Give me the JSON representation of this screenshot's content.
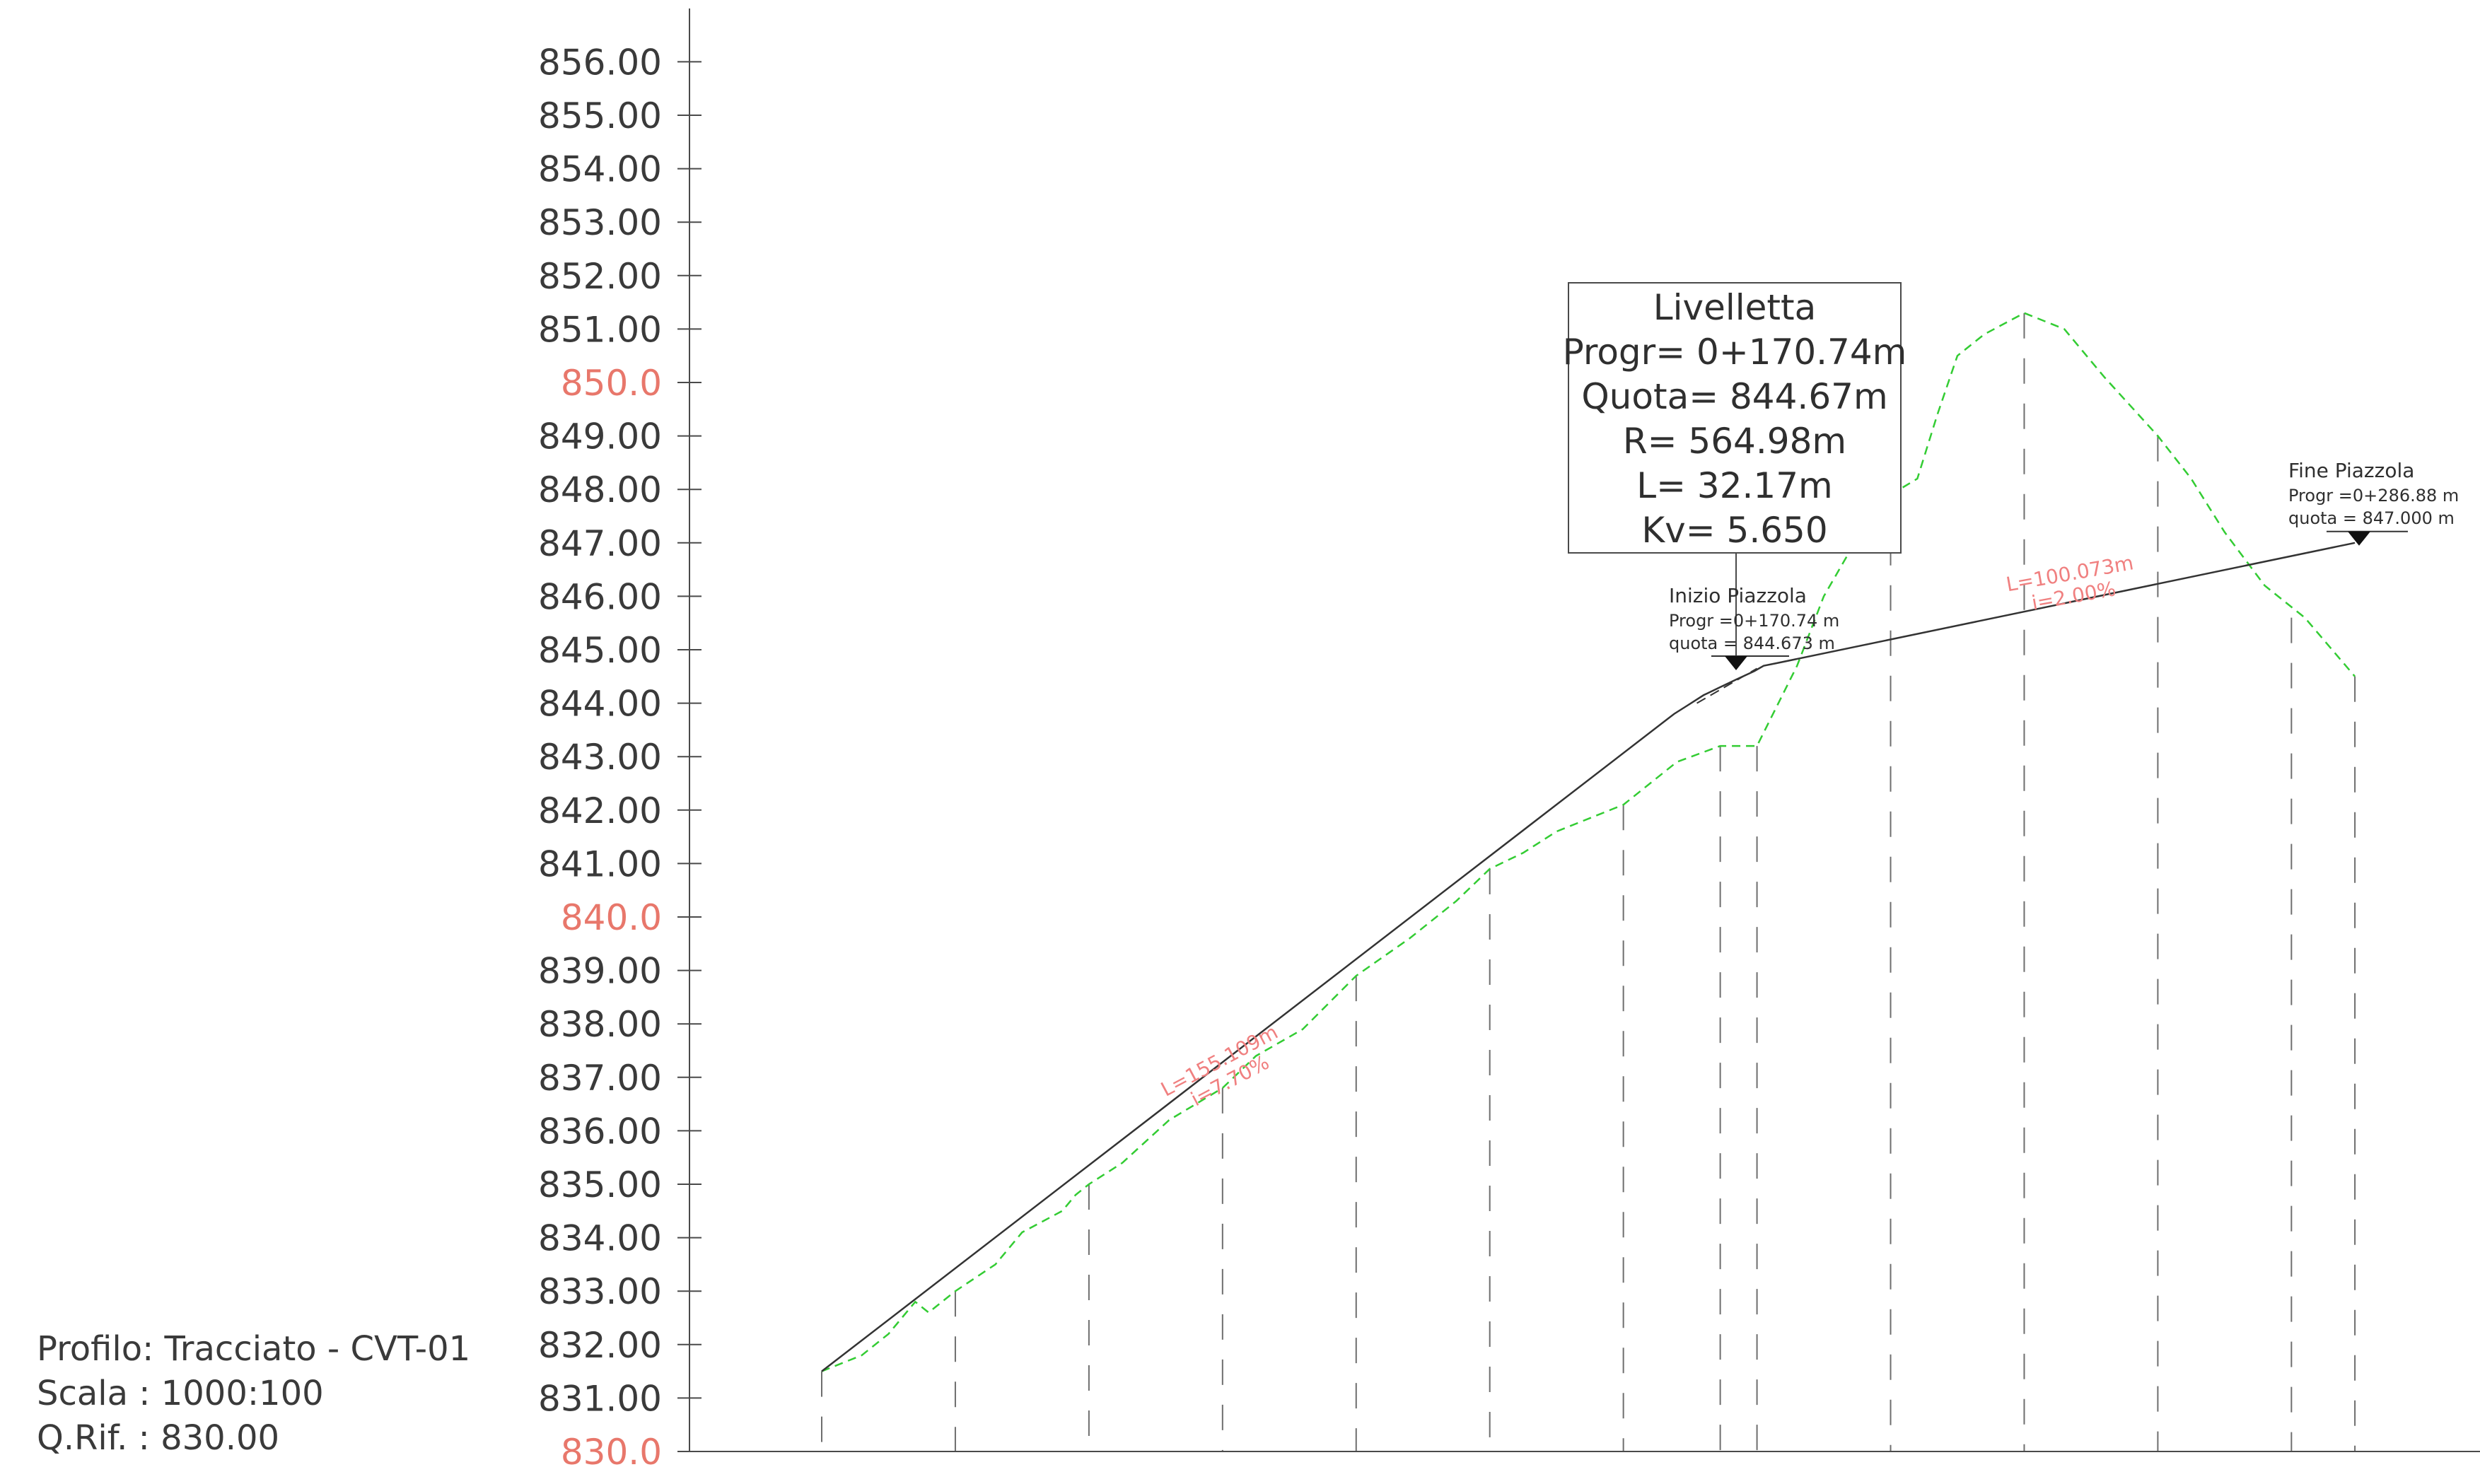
{
  "profile_info": {
    "profilo": "Profilo: Tracciato - CVT-01",
    "scala": "Scala : 1000:100",
    "qrif": "Q.Rif. : 830.00"
  },
  "colors": {
    "axis": "#4a4a4a",
    "ground": "#33cc33",
    "design": "#333333",
    "reference_ticks": "#e8776b",
    "slope_labels": "#f08080",
    "stations": "#6e6e6e"
  },
  "chart_data": {
    "type": "line",
    "ylim": [
      830,
      856.5
    ],
    "grid": false,
    "y_ticks": [
      {
        "value": 856,
        "label": "856.00"
      },
      {
        "value": 855,
        "label": "855.00"
      },
      {
        "value": 854,
        "label": "854.00"
      },
      {
        "value": 853,
        "label": "853.00"
      },
      {
        "value": 852,
        "label": "852.00"
      },
      {
        "value": 851,
        "label": "851.00"
      },
      {
        "value": 850,
        "label": "850.0",
        "reference": true
      },
      {
        "value": 849,
        "label": "849.00"
      },
      {
        "value": 848,
        "label": "848.00"
      },
      {
        "value": 847,
        "label": "847.00"
      },
      {
        "value": 846,
        "label": "846.00"
      },
      {
        "value": 845,
        "label": "845.00"
      },
      {
        "value": 844,
        "label": "844.00"
      },
      {
        "value": 843,
        "label": "843.00"
      },
      {
        "value": 842,
        "label": "842.00"
      },
      {
        "value": 841,
        "label": "841.00"
      },
      {
        "value": 840,
        "label": "840.0",
        "reference": true
      },
      {
        "value": 839,
        "label": "839.00"
      },
      {
        "value": 838,
        "label": "838.00"
      },
      {
        "value": 837,
        "label": "837.00"
      },
      {
        "value": 836,
        "label": "836.00"
      },
      {
        "value": 835,
        "label": "835.00"
      },
      {
        "value": 834,
        "label": "834.00"
      },
      {
        "value": 833,
        "label": "833.00"
      },
      {
        "value": 832,
        "label": "832.00"
      },
      {
        "value": 831,
        "label": "831.00"
      },
      {
        "value": 830,
        "label": "830.0",
        "reference": true
      }
    ],
    "stations": [
      {
        "x": 0,
        "z": 831.5
      },
      {
        "x": 20,
        "z": 833.0
      },
      {
        "x": 40,
        "z": 835.0
      },
      {
        "x": 60,
        "z": 836.8
      },
      {
        "x": 80,
        "z": 838.9
      },
      {
        "x": 100,
        "z": 840.9
      },
      {
        "x": 120,
        "z": 842.1
      },
      {
        "x": 134.5,
        "z": 843.2
      },
      {
        "x": 140,
        "z": 843.2
      },
      {
        "x": 160,
        "z": 847.9
      },
      {
        "x": 180,
        "z": 851.3
      },
      {
        "x": 200,
        "z": 849.0
      },
      {
        "x": 220,
        "z": 845.6
      },
      {
        "x": 229.5,
        "z": 844.5
      }
    ],
    "ground_profile": [
      [
        0,
        831.5
      ],
      [
        6,
        831.8
      ],
      [
        10,
        832.2
      ],
      [
        14,
        832.8
      ],
      [
        16,
        832.6
      ],
      [
        20,
        833.0
      ],
      [
        26,
        833.5
      ],
      [
        30,
        834.1
      ],
      [
        36,
        834.5
      ],
      [
        38,
        834.8
      ],
      [
        40,
        835.0
      ],
      [
        45,
        835.4
      ],
      [
        52,
        836.2
      ],
      [
        60,
        836.8
      ],
      [
        65,
        837.4
      ],
      [
        72,
        837.9
      ],
      [
        80,
        838.9
      ],
      [
        88,
        839.6
      ],
      [
        95,
        840.3
      ],
      [
        100,
        840.9
      ],
      [
        105,
        841.2
      ],
      [
        110,
        841.6
      ],
      [
        120,
        842.1
      ],
      [
        124,
        842.5
      ],
      [
        128,
        842.9
      ],
      [
        134.5,
        843.2
      ],
      [
        140,
        843.2
      ],
      [
        146,
        844.7
      ],
      [
        150,
        846.0
      ],
      [
        156,
        847.3
      ],
      [
        160,
        847.9
      ],
      [
        164,
        848.2
      ],
      [
        167,
        849.4
      ],
      [
        170,
        850.5
      ],
      [
        174,
        850.9
      ],
      [
        180,
        851.3
      ],
      [
        186,
        851.0
      ],
      [
        192,
        850.1
      ],
      [
        200,
        849.0
      ],
      [
        205,
        848.2
      ],
      [
        210,
        847.2
      ],
      [
        216,
        846.2
      ],
      [
        222,
        845.6
      ],
      [
        229.5,
        844.5
      ]
    ],
    "design_profile": [
      [
        0,
        831.5
      ],
      [
        127.6,
        843.8
      ],
      [
        129.5,
        843.95
      ],
      [
        132,
        844.15
      ],
      [
        134.5,
        844.3
      ],
      [
        137,
        844.45
      ],
      [
        139.6,
        844.6
      ],
      [
        141,
        844.7
      ],
      [
        143,
        844.75
      ],
      [
        229.5,
        847.0
      ]
    ],
    "design_dashed": [
      [
        131,
        844.0
      ],
      [
        140,
        844.65
      ]
    ],
    "curve_box": {
      "title": "Livelletta",
      "lines": [
        "Progr= 0+170.74m",
        "Quota= 844.67m",
        "R= 564.98m",
        "L= 32.17m",
        "Kv= 5.650"
      ]
    },
    "markers": [
      {
        "title": "Inizio Piazzola",
        "progr": "Progr =0+170.74 m",
        "quota": "quota = 844.673 m",
        "x": 137,
        "z": 844.67
      },
      {
        "title": "Fine Piazzola",
        "progr": "Progr =0+286.88 m",
        "quota": "quota = 847.000 m",
        "x": 229.5,
        "z": 847.0
      }
    ],
    "slope_annotations": [
      {
        "L": "L=155.109m",
        "i": "i=7.70%",
        "x": 60,
        "z": 837.2,
        "angle": -28
      },
      {
        "L": "L=100.073m",
        "i": "i=2.00%",
        "x": 187,
        "z": 846.3,
        "angle": -10
      }
    ]
  }
}
